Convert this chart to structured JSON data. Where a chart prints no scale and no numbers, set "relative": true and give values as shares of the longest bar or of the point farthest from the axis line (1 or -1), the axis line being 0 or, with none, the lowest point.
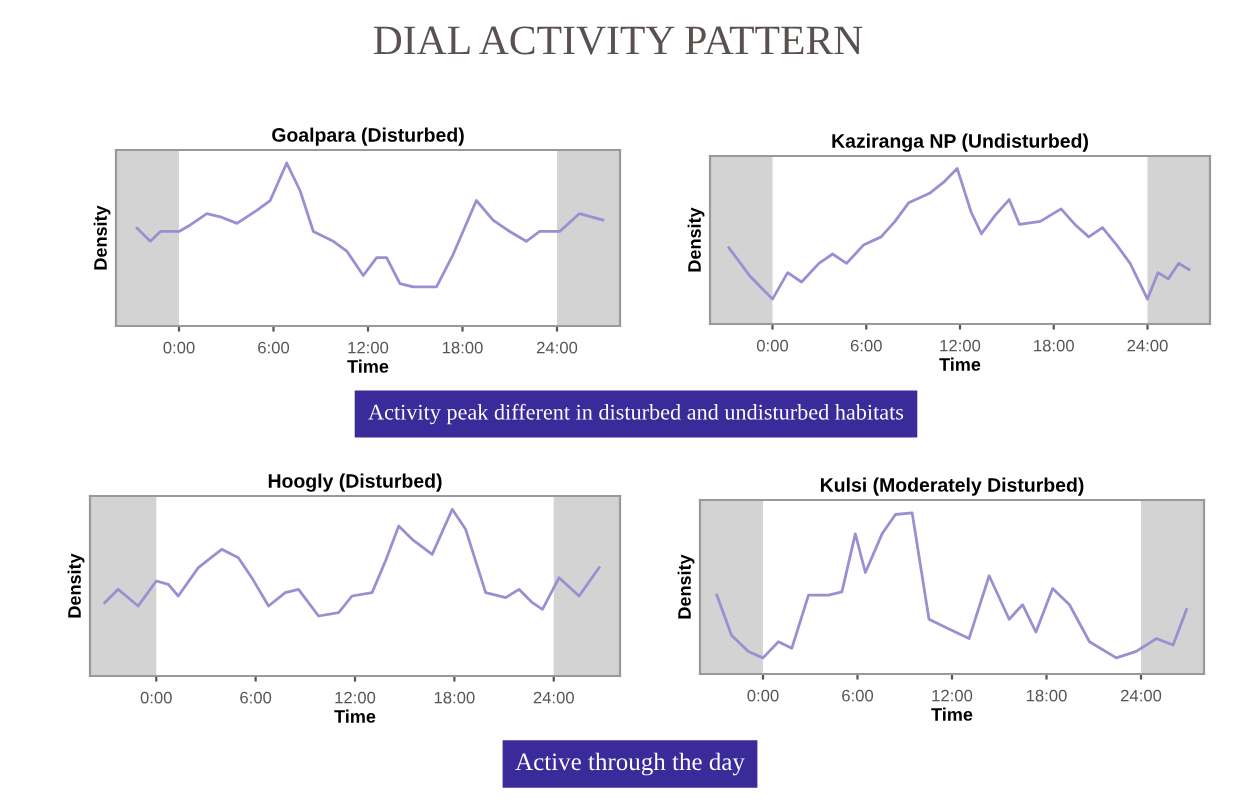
{
  "chart_data": [
    {
      "type": "line",
      "title": "Goalpara (Disturbed)",
      "xlabel": "Time",
      "ylabel": "Density",
      "relative": true,
      "legend": false,
      "grid": false,
      "xlim": [
        -4,
        28
      ],
      "xticks": [
        {
          "value": 0,
          "label": "0:00"
        },
        {
          "value": 6,
          "label": "6:00"
        },
        {
          "value": 12,
          "label": "12:00"
        },
        {
          "value": 18,
          "label": "18:00"
        },
        {
          "value": 24,
          "label": "24:00"
        }
      ],
      "bands": [
        {
          "axis": "x",
          "from": -4,
          "to": 0,
          "color": "#d3d3d3"
        },
        {
          "axis": "x",
          "from": 24,
          "to": 28,
          "color": "#d3d3d3"
        }
      ],
      "annotations": [
        "DIAL ACTIVITY PATTERN",
        "Activity peak different in disturbed and undisturbed habitats"
      ],
      "series": [
        {
          "color": "#9a8fd0",
          "x": [
            -2.66,
            -1.82,
            -1.18,
            0,
            0.72,
            1.77,
            2.62,
            3.68,
            4.94,
            5.79,
            6.84,
            7.69,
            8.53,
            9.8,
            10.65,
            11.7,
            12.55,
            13.18,
            14.03,
            14.87,
            16.35,
            17.41,
            18.88,
            19.94,
            21.0,
            22.05,
            22.9,
            24.17,
            25.43,
            26.91
          ],
          "values": [
            0.6,
            0.52,
            0.58,
            0.58,
            0.62,
            0.69,
            0.67,
            0.63,
            0.71,
            0.77,
            1,
            0.83,
            0.58,
            0.52,
            0.46,
            0.31,
            0.42,
            0.42,
            0.26,
            0.24,
            0.24,
            0.44,
            0.77,
            0.65,
            0.58,
            0.52,
            0.58,
            0.58,
            0.69,
            0.65
          ]
        }
      ]
    },
    {
      "type": "line",
      "title": "Kaziranga NP (Undisturbed)",
      "xlabel": "Time",
      "ylabel": "Density",
      "relative": true,
      "legend": false,
      "grid": false,
      "xlim": [
        -4,
        28
      ],
      "xticks": [
        {
          "value": 0,
          "label": "0:00"
        },
        {
          "value": 6,
          "label": "6:00"
        },
        {
          "value": 12,
          "label": "12:00"
        },
        {
          "value": 18,
          "label": "18:00"
        },
        {
          "value": 24,
          "label": "24:00"
        }
      ],
      "bands": [
        {
          "axis": "x",
          "from": -4,
          "to": 0,
          "color": "#d3d3d3"
        },
        {
          "axis": "x",
          "from": 24,
          "to": 28,
          "color": "#d3d3d3"
        }
      ],
      "series": [
        {
          "color": "#9a8fd0",
          "x": [
            -2.79,
            -1.46,
            0,
            0.97,
            1.86,
            2.97,
            3.85,
            4.74,
            5.85,
            6.95,
            7.84,
            8.72,
            10.05,
            10.94,
            11.82,
            12.71,
            13.37,
            14.26,
            15.15,
            15.81,
            17.14,
            18.47,
            19.35,
            20.24,
            21.12,
            22.01,
            22.89,
            24,
            24.67,
            25.33,
            26,
            26.66
          ],
          "values": [
            0.49,
            0.31,
            0.16,
            0.33,
            0.27,
            0.39,
            0.45,
            0.39,
            0.51,
            0.56,
            0.66,
            0.78,
            0.84,
            0.91,
            1,
            0.72,
            0.58,
            0.7,
            0.8,
            0.64,
            0.66,
            0.74,
            0.64,
            0.56,
            0.62,
            0.51,
            0.39,
            0.16,
            0.33,
            0.29,
            0.39,
            0.35
          ]
        }
      ]
    },
    {
      "type": "line",
      "title": "Hoogly (Disturbed)",
      "xlabel": "Time",
      "ylabel": "Density",
      "relative": true,
      "legend": false,
      "grid": false,
      "xlim": [
        -4,
        28
      ],
      "xticks": [
        {
          "value": 0,
          "label": "0:00"
        },
        {
          "value": 6,
          "label": "6:00"
        },
        {
          "value": 12,
          "label": "12:00"
        },
        {
          "value": 18,
          "label": "18:00"
        },
        {
          "value": 24,
          "label": "24:00"
        }
      ],
      "bands": [
        {
          "axis": "x",
          "from": -4,
          "to": 0,
          "color": "#d3d3d3"
        },
        {
          "axis": "x",
          "from": 24,
          "to": 28,
          "color": "#d3d3d3"
        }
      ],
      "annotations": [
        "Active through the day"
      ],
      "series": [
        {
          "color": "#9a8fd0",
          "x": [
            -3.11,
            -2.3,
            -1.09,
            0,
            0.73,
            1.33,
            2.54,
            3.95,
            4.96,
            5.77,
            6.78,
            7.79,
            8.59,
            9.8,
            11.01,
            11.82,
            13.03,
            13.84,
            14.64,
            15.45,
            16.66,
            17.87,
            18.68,
            19.89,
            21.1,
            21.9,
            22.71,
            23.32,
            24.32,
            25.53,
            26.74
          ],
          "values": [
            0.44,
            0.52,
            0.42,
            0.57,
            0.55,
            0.48,
            0.65,
            0.76,
            0.71,
            0.59,
            0.42,
            0.5,
            0.52,
            0.36,
            0.38,
            0.48,
            0.5,
            0.69,
            0.9,
            0.82,
            0.73,
            1,
            0.88,
            0.5,
            0.47,
            0.52,
            0.44,
            0.4,
            0.59,
            0.48,
            0.65
          ]
        }
      ]
    },
    {
      "type": "line",
      "title": "Kulsi (Moderately Disturbed)",
      "xlabel": "Time",
      "ylabel": "Density",
      "relative": true,
      "legend": false,
      "grid": false,
      "xlim": [
        -4,
        28
      ],
      "xticks": [
        {
          "value": 0,
          "label": "0:00"
        },
        {
          "value": 6,
          "label": "6:00"
        },
        {
          "value": 12,
          "label": "12:00"
        },
        {
          "value": 18,
          "label": "18:00"
        },
        {
          "value": 24,
          "label": "24:00"
        }
      ],
      "bands": [
        {
          "axis": "x",
          "from": -4,
          "to": 0,
          "color": "#d3d3d3"
        },
        {
          "axis": "x",
          "from": 24,
          "to": 28,
          "color": "#d3d3d3"
        }
      ],
      "series": [
        {
          "color": "#9a8fd0",
          "x": [
            -2.93,
            -2.0,
            -0.93,
            0,
            0.98,
            1.83,
            2.89,
            4.16,
            5.01,
            5.86,
            6.5,
            7.56,
            8.41,
            9.47,
            10.54,
            11.81,
            13.08,
            14.36,
            15.63,
            16.48,
            17.33,
            18.39,
            19.46,
            20.73,
            22.43,
            23.7,
            24.98,
            26.04,
            26.89
          ],
          "values": [
            0.49,
            0.24,
            0.14,
            0.1,
            0.2,
            0.16,
            0.49,
            0.49,
            0.51,
            0.87,
            0.63,
            0.87,
            0.99,
            1,
            0.34,
            0.28,
            0.22,
            0.61,
            0.34,
            0.43,
            0.26,
            0.53,
            0.43,
            0.2,
            0.1,
            0.14,
            0.22,
            0.18,
            0.4
          ]
        }
      ]
    }
  ]
}
